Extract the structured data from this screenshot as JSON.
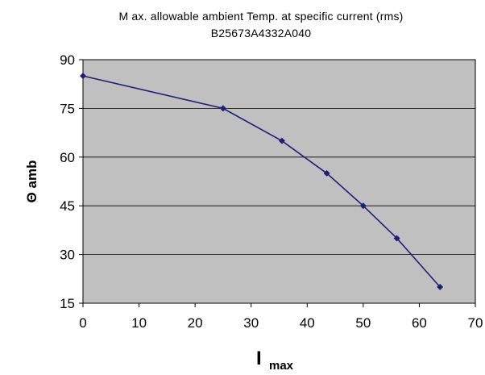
{
  "chart_data": {
    "type": "line",
    "title": "M ax. allowable ambient Temp. at specific current (rms)",
    "subtitle": "B25673A4332A040",
    "xlabel_main": "I",
    "xlabel_sub": "max",
    "ylabel": "Θ amb",
    "xlim": [
      0,
      70
    ],
    "ylim": [
      15,
      90
    ],
    "xticks": [
      "0",
      "10",
      "20",
      "30",
      "40",
      "50",
      "60",
      "70"
    ],
    "yticks": [
      "15",
      "30",
      "45",
      "60",
      "75",
      "90"
    ],
    "grid": "horizontal",
    "colors": {
      "plot_bg": "#c0c0c0",
      "line": "#1f1f7a",
      "grid": "#000000"
    },
    "series": [
      {
        "x": [
          0,
          25,
          35.5,
          43.5,
          50,
          56,
          63.7
        ],
        "y": [
          85,
          75,
          65,
          55,
          45,
          35,
          20
        ]
      }
    ]
  }
}
